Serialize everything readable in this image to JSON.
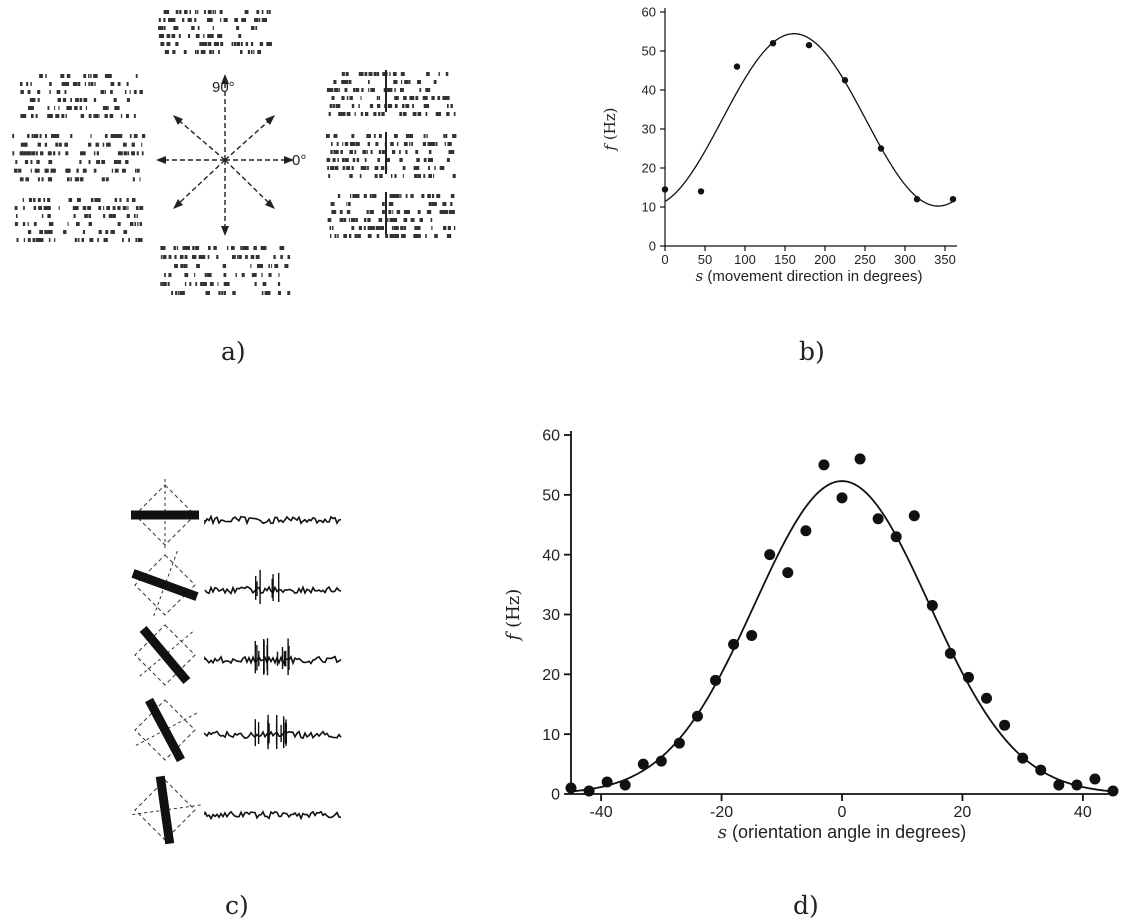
{
  "panels": {
    "a": {
      "caption": "a)",
      "angle_labels": [
        "90°",
        "0°"
      ]
    },
    "c": {
      "caption": "c)"
    }
  },
  "chart_data": [
    {
      "panel": "b",
      "caption": "b)",
      "type": "scatter",
      "xlabel_symbol": "s",
      "xlabel_text": " (movement direction in degrees)",
      "ylabel_symbol": "f",
      "ylabel_text": " (Hz)",
      "xlim": [
        0,
        360
      ],
      "ylim": [
        0,
        60
      ],
      "xticks": [
        0,
        50,
        100,
        150,
        200,
        250,
        300,
        350
      ],
      "yticks": [
        0,
        10,
        20,
        30,
        40,
        50,
        60
      ],
      "points": {
        "x": [
          0,
          45,
          90,
          135,
          180,
          225,
          270,
          315,
          360
        ],
        "y": [
          14.5,
          14,
          46,
          52,
          51.5,
          42.5,
          25,
          12,
          12
        ]
      },
      "fit_curve": {
        "model": "cosine",
        "baseline": 32.34,
        "amplitude": 22.1,
        "preferred": 161.25
      },
      "color": "#111111"
    },
    {
      "panel": "d",
      "caption": "d)",
      "type": "scatter",
      "xlabel_symbol": "s",
      "xlabel_text": " (orientation angle in degrees)",
      "ylabel_symbol": "f",
      "ylabel_text": " (Hz)",
      "xlim": [
        -45,
        45
      ],
      "ylim": [
        0,
        60
      ],
      "xticks": [
        -40,
        -20,
        0,
        20,
        40
      ],
      "yticks": [
        0,
        10,
        20,
        30,
        40,
        50,
        60
      ],
      "points": {
        "x": [
          -45,
          -42,
          -39,
          -36,
          -33,
          -30,
          -27,
          -24,
          -21,
          -18,
          -15,
          -12,
          -9,
          -6,
          -3,
          0,
          3,
          6,
          9,
          12,
          15,
          18,
          21,
          24,
          27,
          30,
          33,
          36,
          39,
          42,
          45
        ],
        "y": [
          1,
          0.5,
          2,
          1.5,
          5,
          5.5,
          8.5,
          13,
          19,
          25,
          26.5,
          40,
          37,
          44,
          55,
          49.5,
          56,
          46,
          43,
          46.5,
          31.5,
          23.5,
          19.5,
          16,
          11.5,
          6,
          4,
          1.5,
          1.5,
          2.5,
          0.5
        ]
      },
      "fit_curve": {
        "model": "gaussian",
        "peak": 52.3,
        "center": 0,
        "sigma": 14.5
      },
      "color": "#111111"
    }
  ]
}
